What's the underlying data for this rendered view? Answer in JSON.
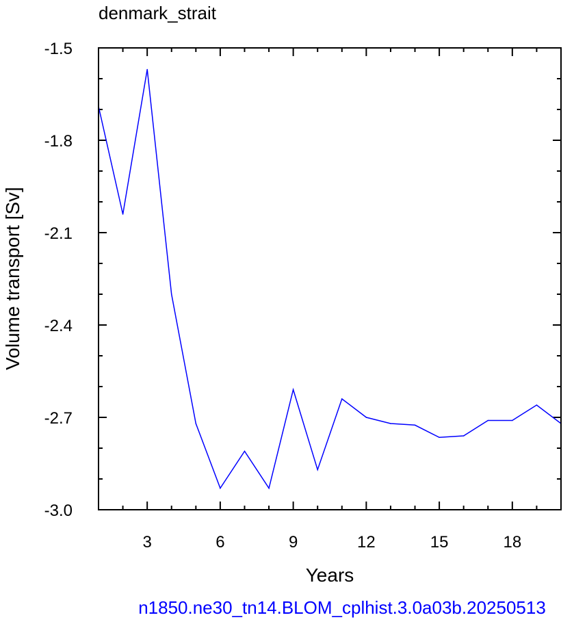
{
  "chart_data": {
    "type": "line",
    "title": "denmark_strait",
    "xlabel": "Years",
    "ylabel": "Volume transport [Sv]",
    "xlim": [
      1,
      20
    ],
    "ylim": [
      -3.0,
      -1.5
    ],
    "x_ticks": [
      3,
      6,
      9,
      12,
      15,
      18
    ],
    "x_tick_labels": [
      "3",
      "6",
      "9",
      "12",
      "15",
      "18"
    ],
    "x_minor_step": 1,
    "y_ticks": [
      -1.5,
      -1.8,
      -2.1,
      -2.4,
      -2.7,
      -3.0
    ],
    "y_tick_labels": [
      "-1.5",
      "-1.8",
      "-2.1",
      "-2.4",
      "-2.7",
      "-3.0"
    ],
    "y_minor_step": 0.1,
    "grid": false,
    "series": [
      {
        "color": "#0000ff",
        "x": [
          1,
          2,
          3,
          4,
          5,
          6,
          7,
          8,
          9,
          10,
          11,
          12,
          13,
          14,
          15,
          16,
          17,
          18,
          19,
          20
        ],
        "y": [
          -1.69,
          -2.04,
          -1.57,
          -2.3,
          -2.72,
          -2.93,
          -2.81,
          -2.93,
          -2.61,
          -2.87,
          -2.64,
          -2.7,
          -2.72,
          -2.725,
          -2.765,
          -2.76,
          -2.71,
          -2.71,
          -2.66,
          -2.72
        ]
      }
    ],
    "caption": "n1850.ne30_tn14.BLOM_cplhist.3.0a03b.20250513",
    "caption_color": "#0000ff"
  }
}
